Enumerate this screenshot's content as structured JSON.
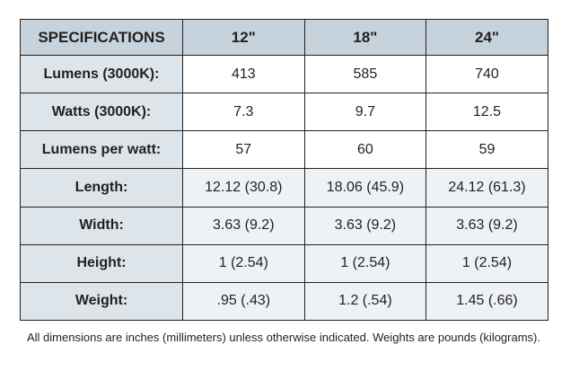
{
  "table": {
    "headers": [
      "SPECIFICATIONS",
      "12\"",
      "18\"",
      "24\""
    ],
    "rows": [
      {
        "label": "Lumens (3000K):",
        "values": [
          "413",
          "585",
          "740"
        ]
      },
      {
        "label": "Watts (3000K):",
        "values": [
          "7.3",
          "9.7",
          "12.5"
        ]
      },
      {
        "label": "Lumens per watt:",
        "values": [
          "57",
          "60",
          "59"
        ]
      },
      {
        "label": "Length:",
        "values": [
          "12.12 (30.8)",
          "18.06 (45.9)",
          "24.12 (61.3)"
        ]
      },
      {
        "label": "Width:",
        "values": [
          "3.63 (9.2)",
          "3.63 (9.2)",
          "3.63 (9.2)"
        ]
      },
      {
        "label": "Height:",
        "values": [
          "1 (2.54)",
          "1 (2.54)",
          "1 (2.54)"
        ]
      },
      {
        "label": "Weight:",
        "values": [
          ".95 (.43)",
          "1.2 (.54)",
          "1.45 (.66)"
        ]
      }
    ]
  },
  "footnote": "All dimensions are inches (millimeters) unless otherwise indicated. Weights are pounds (kilograms).",
  "colors": {
    "header_fill": "#c7d3dc",
    "label_fill": "#dde5eb",
    "border": "#231f20"
  }
}
